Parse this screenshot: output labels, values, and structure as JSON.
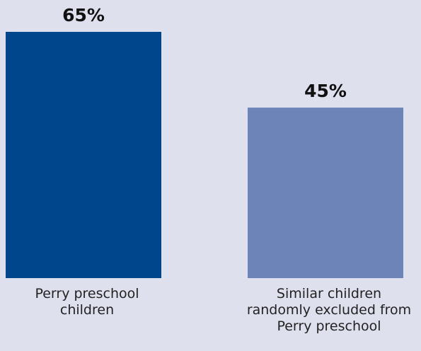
{
  "chart_data": {
    "type": "bar",
    "categories": [
      "Perry preschool\nchildren",
      "Similar children\nrandomly excluded from\nPerry preschool"
    ],
    "values": [
      65,
      45
    ],
    "value_labels": [
      "65%",
      "45%"
    ],
    "colors": [
      "#00468c",
      "#6d84b8"
    ],
    "title": "",
    "xlabel": "",
    "ylabel": "",
    "ylim": [
      0,
      65
    ],
    "grid": false,
    "legend": "none"
  }
}
